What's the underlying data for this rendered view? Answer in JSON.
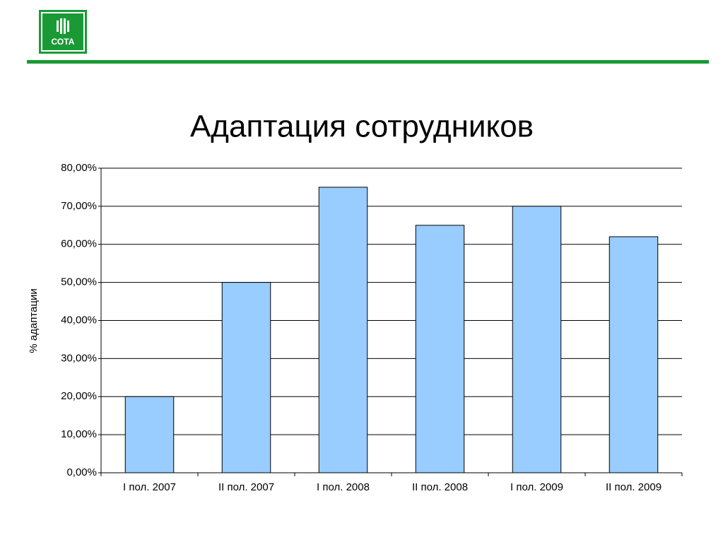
{
  "logo": "СОТА",
  "chart_data": {
    "type": "bar",
    "title": "Адаптация сотрудников",
    "y_label": "% адаптации",
    "categories": [
      "I пол. 2007",
      "II пол. 2007",
      "I пол. 2008",
      "II пол. 2008",
      "I пол. 2009",
      "II пол. 2009"
    ],
    "values": [
      20,
      50,
      75,
      65,
      70,
      62
    ],
    "color": "#99ccff",
    "ylim": [
      0,
      80
    ],
    "yticks": [
      {
        "value": 0,
        "label": "0,00%"
      },
      {
        "value": 10,
        "label": "10,00%"
      },
      {
        "value": 20,
        "label": "20,00%"
      },
      {
        "value": 30,
        "label": "30,00%"
      },
      {
        "value": 40,
        "label": "40,00%"
      },
      {
        "value": 50,
        "label": "50,00%"
      },
      {
        "value": 60,
        "label": "60,00%"
      },
      {
        "value": 70,
        "label": "70,00%"
      },
      {
        "value": 80,
        "label": "80,00%"
      }
    ],
    "grid": true
  }
}
